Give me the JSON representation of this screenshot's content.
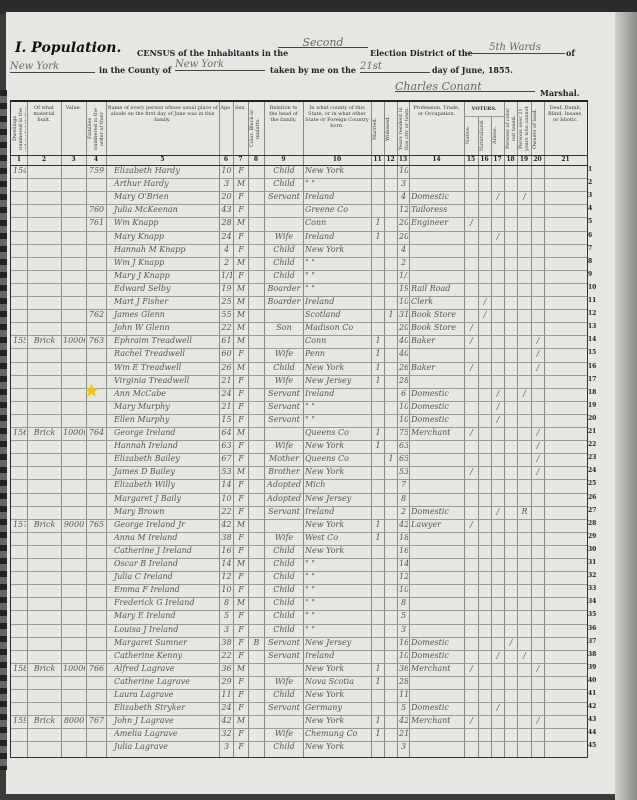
{
  "header": {
    "section_title": "I. Population.",
    "line1_prefix": "CENSUS of the Inhabitants in the",
    "election_district": "Second",
    "line1_mid": "Election District of the",
    "ward": "5th Wards",
    "line1_suffix": "of",
    "city": "New York",
    "line2_prefix": "in the County of",
    "county": "New York",
    "line2_mid": "taken by me on the",
    "day": "21st",
    "line2_suffix": "day of June, 1855.",
    "marshal_name": "Charles Conant",
    "marshal_label": "Marshal."
  },
  "columns": [
    {
      "num": "1",
      "label": "Dwellings numbered in the order of visitation."
    },
    {
      "num": "2",
      "label": "Of what material built."
    },
    {
      "num": "3",
      "label": "Value."
    },
    {
      "num": "4",
      "label": "Families numbered in the order of their visitation."
    },
    {
      "num": "5",
      "label": "Name of every person whose usual place of abode on the first day of June was in this family."
    },
    {
      "num": "6",
      "label": "Age."
    },
    {
      "num": "7",
      "label": "Sex."
    },
    {
      "num": "8",
      "label": "Color. Black or mulatto."
    },
    {
      "num": "9",
      "label": "Relation to the head of the family."
    },
    {
      "num": "10",
      "label": "In what county of this State, or in what other State or Foreign Country born."
    },
    {
      "num": "11",
      "label": "Married."
    },
    {
      "num": "12",
      "label": "Widowed."
    },
    {
      "num": "13",
      "label": "Years resident in this city or town."
    },
    {
      "num": "14",
      "label": "Profession, Trade, or Occupation."
    },
    {
      "num": "15",
      "label": "Native."
    },
    {
      "num": "16",
      "label": "Naturalized."
    },
    {
      "num": "17",
      "label": "Aliens."
    },
    {
      "num": "18",
      "label": "Persons of color not taxed."
    },
    {
      "num": "19",
      "label": "Persons over 21 years who cannot read and write."
    },
    {
      "num": "20",
      "label": "Owners of land."
    },
    {
      "num": "21",
      "label": "Deaf, Dumb, Blind, Insane, or Idiotic."
    }
  ],
  "voters_label": "VOTERS.",
  "marked_row": 18,
  "star_color": "#f5c218",
  "rows": [
    [
      "154",
      "",
      "",
      "759",
      "Elizabeth Hardy",
      "10",
      "F",
      "",
      "Child",
      "New York",
      "",
      "",
      "10",
      "",
      "",
      "",
      "",
      "",
      "",
      "",
      ""
    ],
    [
      "",
      "",
      "",
      "",
      "Arthur Hardy",
      "3",
      "M",
      "",
      "Child",
      "\"   \"",
      "",
      "",
      "3",
      "",
      "",
      "",
      "",
      "",
      "",
      "",
      ""
    ],
    [
      "",
      "",
      "",
      "",
      "Mary O'Brien",
      "20",
      "F",
      "",
      "Servant",
      "Ireland",
      "",
      "",
      "4",
      "Domestic",
      "",
      "",
      "/",
      "",
      "/",
      "",
      ""
    ],
    [
      "",
      "",
      "",
      "760",
      "Julia McKeenan",
      "43",
      "F",
      "",
      "",
      "Greene Co",
      "",
      "",
      "12",
      "Tailoress",
      "",
      "",
      "",
      "",
      "",
      "",
      ""
    ],
    [
      "",
      "",
      "",
      "761",
      "Wm Knapp",
      "28",
      "M",
      "",
      "",
      "Conn",
      "1",
      "",
      "20",
      "Engineer",
      "/",
      "",
      "",
      "",
      "",
      "",
      ""
    ],
    [
      "",
      "",
      "",
      "",
      "Mary Knapp",
      "24",
      "F",
      "",
      "Wife",
      "Ireland",
      "1",
      "",
      "20",
      "",
      "",
      "",
      "/",
      "",
      "",
      "",
      ""
    ],
    [
      "",
      "",
      "",
      "",
      "Hannah M Knapp",
      "4",
      "F",
      "",
      "Child",
      "New York",
      "",
      "",
      "4",
      "",
      "",
      "",
      "",
      "",
      "",
      "",
      ""
    ],
    [
      "",
      "",
      "",
      "",
      "Wm J Knapp",
      "2",
      "M",
      "",
      "Child",
      "\"   \"",
      "",
      "",
      "2",
      "",
      "",
      "",
      "",
      "",
      "",
      "",
      ""
    ],
    [
      "",
      "",
      "",
      "",
      "Mary J Knapp",
      "1/12",
      "F",
      "",
      "Child",
      "\"   \"",
      "",
      "",
      "1/12",
      "",
      "",
      "",
      "",
      "",
      "",
      "",
      ""
    ],
    [
      "",
      "",
      "",
      "",
      "Edward Selby",
      "19",
      "M",
      "",
      "Boarder",
      "\"   \"",
      "",
      "",
      "19",
      "Rail Road",
      "",
      "",
      "",
      "",
      "",
      "",
      ""
    ],
    [
      "",
      "",
      "",
      "",
      "Mart J Fisher",
      "25",
      "M",
      "",
      "Boarder",
      "Ireland",
      "",
      "",
      "10",
      "Clerk",
      "",
      "/",
      "",
      "",
      "",
      "",
      ""
    ],
    [
      "",
      "",
      "",
      "762",
      "James Glenn",
      "55",
      "M",
      "",
      "",
      "Scotland",
      "",
      "1",
      "31",
      "Book Store",
      "",
      "/",
      "",
      "",
      "",
      "",
      ""
    ],
    [
      "",
      "",
      "",
      "",
      "John W Glenn",
      "22",
      "M",
      "",
      "Son",
      "Madison Co",
      "",
      "",
      "20",
      "Book Store",
      "/",
      "",
      "",
      "",
      "",
      "",
      ""
    ],
    [
      "155",
      "Brick",
      "10000",
      "763",
      "Ephraim Treadwell",
      "61",
      "M",
      "",
      "",
      "Conn",
      "1",
      "",
      "40",
      "Baker",
      "/",
      "",
      "",
      "",
      "",
      "/",
      ""
    ],
    [
      "",
      "",
      "",
      "",
      "Rachel Treadwell",
      "60",
      "F",
      "",
      "Wife",
      "Penn",
      "1",
      "",
      "40",
      "",
      "",
      "",
      "",
      "",
      "",
      "/",
      ""
    ],
    [
      "",
      "",
      "",
      "",
      "Wm E Treadwell",
      "26",
      "M",
      "",
      "Child",
      "New York",
      "1",
      "",
      "26",
      "Baker",
      "/",
      "",
      "",
      "",
      "",
      "/",
      ""
    ],
    [
      "",
      "",
      "",
      "",
      "Virginia Treadwell",
      "21",
      "F",
      "",
      "Wife",
      "New Jersey",
      "1",
      "",
      "28",
      "",
      "",
      "",
      "",
      "",
      "",
      "",
      ""
    ],
    [
      "",
      "",
      "",
      "",
      "Ann McCabe",
      "24",
      "F",
      "",
      "Servant",
      "Ireland",
      "",
      "",
      "6",
      "Domestic",
      "",
      "",
      "/",
      "",
      "/",
      "",
      ""
    ],
    [
      "",
      "",
      "",
      "",
      "Mary Murphy",
      "21",
      "F",
      "",
      "Servant",
      "\"   \"",
      "",
      "",
      "10",
      "Domestic",
      "",
      "",
      "/",
      "",
      "",
      "",
      ""
    ],
    [
      "",
      "",
      "",
      "",
      "Ellen Murphy",
      "15",
      "F",
      "",
      "Servant",
      "\"   \"",
      "",
      "",
      "10",
      "Domestic",
      "",
      "",
      "/",
      "",
      "",
      "",
      ""
    ],
    [
      "156",
      "Brick",
      "10000",
      "764",
      "George Ireland",
      "64",
      "M",
      "",
      "",
      "Queens Co",
      "1",
      "",
      "75",
      "Merchant",
      "/",
      "",
      "",
      "",
      "",
      "/",
      ""
    ],
    [
      "",
      "",
      "",
      "",
      "Hannah Ireland",
      "63",
      "F",
      "",
      "Wife",
      "New York",
      "1",
      "",
      "63",
      "",
      "",
      "",
      "",
      "",
      "",
      "/",
      ""
    ],
    [
      "",
      "",
      "",
      "",
      "Elizabeth Bailey",
      "67",
      "F",
      "",
      "Mother",
      "Queens Co",
      "",
      "1",
      "65",
      "",
      "",
      "",
      "",
      "",
      "",
      "/",
      ""
    ],
    [
      "",
      "",
      "",
      "",
      "James D Bailey",
      "53",
      "M",
      "",
      "Brother",
      "New York",
      "",
      "",
      "53",
      "",
      "/",
      "",
      "",
      "",
      "",
      "/",
      ""
    ],
    [
      "",
      "",
      "",
      "",
      "Elizabeth Willy",
      "14",
      "F",
      "",
      "Adopted",
      "Mich",
      "",
      "",
      "7",
      "",
      "",
      "",
      "",
      "",
      "",
      "",
      ""
    ],
    [
      "",
      "",
      "",
      "",
      "Margaret J Baily",
      "10",
      "F",
      "",
      "Adopted",
      "New Jersey",
      "",
      "",
      "8",
      "",
      "",
      "",
      "",
      "",
      "",
      "",
      ""
    ],
    [
      "",
      "",
      "",
      "",
      "Mary Brown",
      "22",
      "F",
      "",
      "Servant",
      "Ireland",
      "",
      "",
      "2",
      "Domestic",
      "",
      "",
      "/",
      "",
      "R",
      "",
      ""
    ],
    [
      "157",
      "Brick",
      "9000",
      "765",
      "George Ireland Jr",
      "42",
      "M",
      "",
      "",
      "New York",
      "1",
      "",
      "42",
      "Lawyer",
      "/",
      "",
      "",
      "",
      "",
      "",
      ""
    ],
    [
      "",
      "",
      "",
      "",
      "Anna M Ireland",
      "38",
      "F",
      "",
      "Wife",
      "West Co",
      "1",
      "",
      "18",
      "",
      "",
      "",
      "",
      "",
      "",
      "",
      ""
    ],
    [
      "",
      "",
      "",
      "",
      "Catherine J Ireland",
      "16",
      "F",
      "",
      "Child",
      "New York",
      "",
      "",
      "16",
      "",
      "",
      "",
      "",
      "",
      "",
      "",
      ""
    ],
    [
      "",
      "",
      "",
      "",
      "Oscar B Ireland",
      "14",
      "M",
      "",
      "Child",
      "\"   \"",
      "",
      "",
      "14",
      "",
      "",
      "",
      "",
      "",
      "",
      "",
      ""
    ],
    [
      "",
      "",
      "",
      "",
      "Julia C Ireland",
      "12",
      "F",
      "",
      "Child",
      "\"   \"",
      "",
      "",
      "12",
      "",
      "",
      "",
      "",
      "",
      "",
      "",
      ""
    ],
    [
      "",
      "",
      "",
      "",
      "Emma F Ireland",
      "10",
      "F",
      "",
      "Child",
      "\"   \"",
      "",
      "",
      "10",
      "",
      "",
      "",
      "",
      "",
      "",
      "",
      ""
    ],
    [
      "",
      "",
      "",
      "",
      "Frederick G Ireland",
      "8",
      "M",
      "",
      "Child",
      "\"   \"",
      "",
      "",
      "8",
      "",
      "",
      "",
      "",
      "",
      "",
      "",
      ""
    ],
    [
      "",
      "",
      "",
      "",
      "Mary E Ireland",
      "5",
      "F",
      "",
      "Child",
      "\"   \"",
      "",
      "",
      "5",
      "",
      "",
      "",
      "",
      "",
      "",
      "",
      ""
    ],
    [
      "",
      "",
      "",
      "",
      "Louisa J Ireland",
      "3",
      "F",
      "",
      "Child",
      "\"   \"",
      "",
      "",
      "3",
      "",
      "",
      "",
      "",
      "",
      "",
      "",
      ""
    ],
    [
      "",
      "",
      "",
      "",
      "Margaret Sumner",
      "38",
      "F",
      "B",
      "Servant",
      "New Jersey",
      "",
      "",
      "16",
      "Domestic",
      "",
      "",
      "",
      "/",
      "",
      "",
      ""
    ],
    [
      "",
      "",
      "",
      "",
      "Catherine Kenny",
      "22",
      "F",
      "",
      "Servant",
      "Ireland",
      "",
      "",
      "10",
      "Domestic",
      "",
      "",
      "/",
      "",
      "/",
      "",
      ""
    ],
    [
      "158",
      "Brick",
      "10000",
      "766",
      "Alfred Lagrave",
      "36",
      "M",
      "",
      "",
      "New York",
      "1",
      "",
      "36",
      "Merchant",
      "/",
      "",
      "",
      "",
      "",
      "/",
      ""
    ],
    [
      "",
      "",
      "",
      "",
      "Catherine Lagrave",
      "29",
      "F",
      "",
      "Wife",
      "Nova Scotia",
      "1",
      "",
      "28",
      "",
      "",
      "",
      "",
      "",
      "",
      "",
      ""
    ],
    [
      "",
      "",
      "",
      "",
      "Laura Lagrave",
      "11",
      "F",
      "",
      "Child",
      "New York",
      "",
      "",
      "11",
      "",
      "",
      "",
      "",
      "",
      "",
      "",
      ""
    ],
    [
      "",
      "",
      "",
      "",
      "Elizabeth Stryker",
      "24",
      "F",
      "",
      "Servant",
      "Germany",
      "",
      "",
      "5",
      "Domestic",
      "",
      "",
      "/",
      "",
      "",
      "",
      ""
    ],
    [
      "159",
      "Brick",
      "8000",
      "767",
      "John J Lagrave",
      "42",
      "M",
      "",
      "",
      "New York",
      "1",
      "",
      "42",
      "Merchant",
      "/",
      "",
      "",
      "",
      "",
      "/",
      ""
    ],
    [
      "",
      "",
      "",
      "",
      "Amelia Lagrave",
      "32",
      "F",
      "",
      "Wife",
      "Chemung Co",
      "1",
      "",
      "21",
      "",
      "",
      "",
      "",
      "",
      "",
      "",
      ""
    ],
    [
      "",
      "",
      "",
      "",
      "Julia Lagrave",
      "3",
      "F",
      "",
      "Child",
      "New York",
      "",
      "",
      "3",
      "",
      "",
      "",
      "",
      "",
      "",
      "",
      ""
    ]
  ]
}
